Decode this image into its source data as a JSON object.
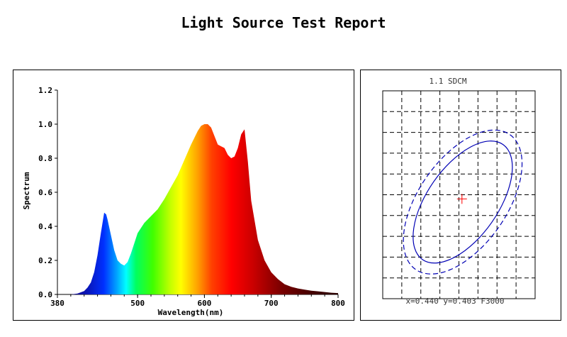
{
  "report": {
    "title": "Light Source Test Report"
  },
  "chart_data": [
    {
      "type": "area",
      "ylabel": "Spectrum",
      "xlabel": "Wavelength(nm)",
      "xlim": [
        380,
        800
      ],
      "ylim": [
        0,
        1.2
      ],
      "xticks": [
        380,
        500,
        600,
        700,
        800
      ],
      "yticks": [
        0.0,
        0.2,
        0.4,
        0.6,
        0.8,
        1.0,
        1.2
      ],
      "x": [
        380,
        400,
        410,
        420,
        425,
        430,
        435,
        440,
        445,
        450,
        453,
        455,
        460,
        465,
        470,
        475,
        480,
        485,
        490,
        495,
        500,
        505,
        510,
        520,
        530,
        540,
        550,
        560,
        570,
        580,
        590,
        595,
        600,
        605,
        610,
        615,
        620,
        625,
        630,
        635,
        640,
        645,
        650,
        655,
        660,
        665,
        670,
        680,
        690,
        700,
        710,
        720,
        730,
        740,
        750,
        760,
        770,
        780,
        790,
        800
      ],
      "values": [
        0,
        0,
        0.005,
        0.02,
        0.04,
        0.07,
        0.13,
        0.23,
        0.36,
        0.48,
        0.47,
        0.44,
        0.35,
        0.26,
        0.2,
        0.18,
        0.17,
        0.19,
        0.24,
        0.3,
        0.36,
        0.39,
        0.42,
        0.46,
        0.5,
        0.56,
        0.63,
        0.7,
        0.79,
        0.88,
        0.96,
        0.99,
        1.0,
        1.0,
        0.98,
        0.93,
        0.88,
        0.87,
        0.86,
        0.82,
        0.8,
        0.81,
        0.86,
        0.94,
        0.97,
        0.78,
        0.55,
        0.32,
        0.2,
        0.13,
        0.09,
        0.06,
        0.045,
        0.035,
        0.028,
        0.022,
        0.018,
        0.014,
        0.01,
        0.008
      ],
      "grid": false,
      "fill": "spectral-gradient"
    },
    {
      "type": "scatter",
      "title": "1.1 SDCM",
      "annotation": "x=0.440 y=0.403 F3000",
      "grid": true,
      "grid_style": "dashed",
      "columns": 8,
      "rows": 10,
      "series": [
        {
          "kind": "ellipse",
          "style": "solid",
          "color": "#0000b4"
        },
        {
          "kind": "ellipse",
          "style": "dashed",
          "color": "#0000b4"
        },
        {
          "kind": "point",
          "marker": "+",
          "color": "#ff0000"
        }
      ]
    }
  ]
}
